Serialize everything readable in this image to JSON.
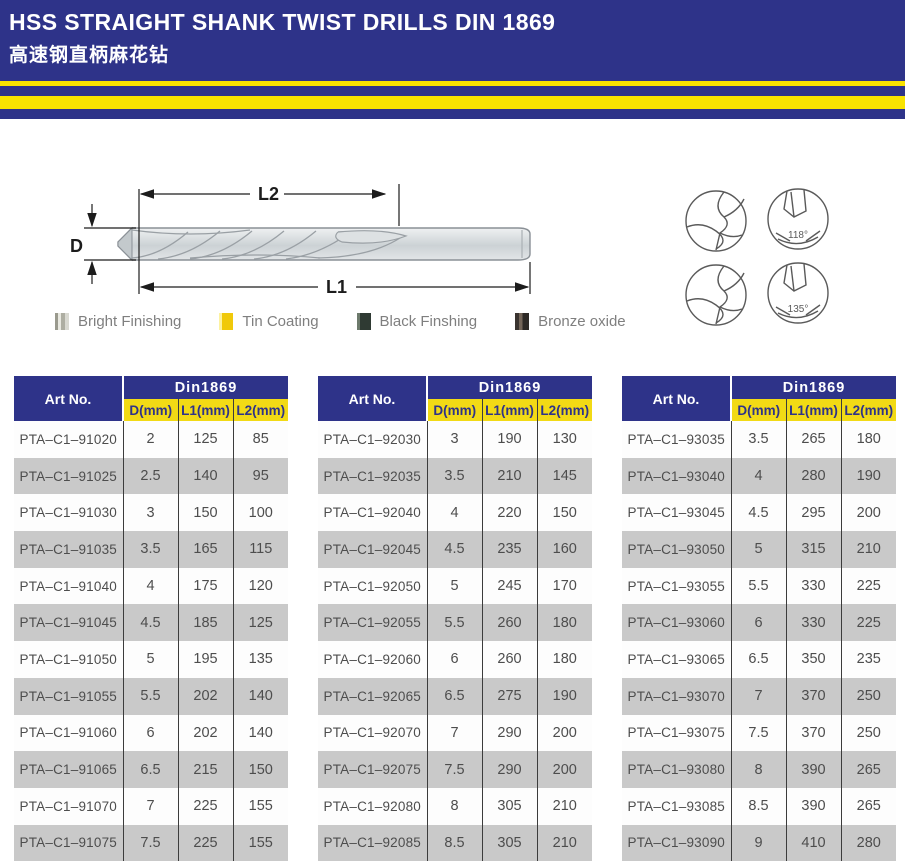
{
  "header": {
    "title_en": "HSS STRAIGHT SHANK TWIST DRILLS DIN 1869",
    "title_zh": "高速钢直柄麻花钻"
  },
  "colors": {
    "navy": "#2e3389",
    "stripe_yellow": "#f8e300",
    "subheader_yellow": "#f2da15",
    "row_gray": "#c9c9c9",
    "row_white": "#fdfdfd",
    "cell_text": "#4d4d4d"
  },
  "diagram": {
    "dim_d": "D",
    "dim_l1": "L1",
    "dim_l2": "L2",
    "angle_top": "118°",
    "angle_bottom": "135°"
  },
  "legend": {
    "items": [
      {
        "name": "bright-finishing",
        "label": "Bright Finishing"
      },
      {
        "name": "tin-coating",
        "label": "Tin Coating"
      },
      {
        "name": "black-finshing",
        "label": "Black Finshing"
      },
      {
        "name": "bronze-oxide",
        "label": "Bronze oxide"
      }
    ]
  },
  "tables": [
    {
      "art_col_header": "Art No.",
      "group_header": "Din1869",
      "sub_headers": [
        "D(mm)",
        "L1(mm)",
        "L2(mm)"
      ],
      "rows": [
        [
          "PTA–C1–91020",
          "2",
          "125",
          "85"
        ],
        [
          "PTA–C1–91025",
          "2.5",
          "140",
          "95"
        ],
        [
          "PTA–C1–91030",
          "3",
          "150",
          "100"
        ],
        [
          "PTA–C1–91035",
          "3.5",
          "165",
          "115"
        ],
        [
          "PTA–C1–91040",
          "4",
          "175",
          "120"
        ],
        [
          "PTA–C1–91045",
          "4.5",
          "185",
          "125"
        ],
        [
          "PTA–C1–91050",
          "5",
          "195",
          "135"
        ],
        [
          "PTA–C1–91055",
          "5.5",
          "202",
          "140"
        ],
        [
          "PTA–C1–91060",
          "6",
          "202",
          "140"
        ],
        [
          "PTA–C1–91065",
          "6.5",
          "215",
          "150"
        ],
        [
          "PTA–C1–91070",
          "7",
          "225",
          "155"
        ],
        [
          "PTA–C1–91075",
          "7.5",
          "225",
          "155"
        ]
      ]
    },
    {
      "art_col_header": "Art No.",
      "group_header": "Din1869",
      "sub_headers": [
        "D(mm)",
        "L1(mm)",
        "L2(mm)"
      ],
      "rows": [
        [
          "PTA–C1–92030",
          "3",
          "190",
          "130"
        ],
        [
          "PTA–C1–92035",
          "3.5",
          "210",
          "145"
        ],
        [
          "PTA–C1–92040",
          "4",
          "220",
          "150"
        ],
        [
          "PTA–C1–92045",
          "4.5",
          "235",
          "160"
        ],
        [
          "PTA–C1–92050",
          "5",
          "245",
          "170"
        ],
        [
          "PTA–C1–92055",
          "5.5",
          "260",
          "180"
        ],
        [
          "PTA–C1–92060",
          "6",
          "260",
          "180"
        ],
        [
          "PTA–C1–92065",
          "6.5",
          "275",
          "190"
        ],
        [
          "PTA–C1–92070",
          "7",
          "290",
          "200"
        ],
        [
          "PTA–C1–92075",
          "7.5",
          "290",
          "200"
        ],
        [
          "PTA–C1–92080",
          "8",
          "305",
          "210"
        ],
        [
          "PTA–C1–92085",
          "8.5",
          "305",
          "210"
        ]
      ]
    },
    {
      "art_col_header": "Art No.",
      "group_header": "Din1869",
      "sub_headers": [
        "D(mm)",
        "L1(mm)",
        "L2(mm)"
      ],
      "rows": [
        [
          "PTA–C1–93035",
          "3.5",
          "265",
          "180"
        ],
        [
          "PTA–C1–93040",
          "4",
          "280",
          "190"
        ],
        [
          "PTA–C1–93045",
          "4.5",
          "295",
          "200"
        ],
        [
          "PTA–C1–93050",
          "5",
          "315",
          "210"
        ],
        [
          "PTA–C1–93055",
          "5.5",
          "330",
          "225"
        ],
        [
          "PTA–C1–93060",
          "6",
          "330",
          "225"
        ],
        [
          "PTA–C1–93065",
          "6.5",
          "350",
          "235"
        ],
        [
          "PTA–C1–93070",
          "7",
          "370",
          "250"
        ],
        [
          "PTA–C1–93075",
          "7.5",
          "370",
          "250"
        ],
        [
          "PTA–C1–93080",
          "8",
          "390",
          "265"
        ],
        [
          "PTA–C1–93085",
          "8.5",
          "390",
          "265"
        ],
        [
          "PTA–C1–93090",
          "9",
          "410",
          "280"
        ]
      ]
    }
  ]
}
